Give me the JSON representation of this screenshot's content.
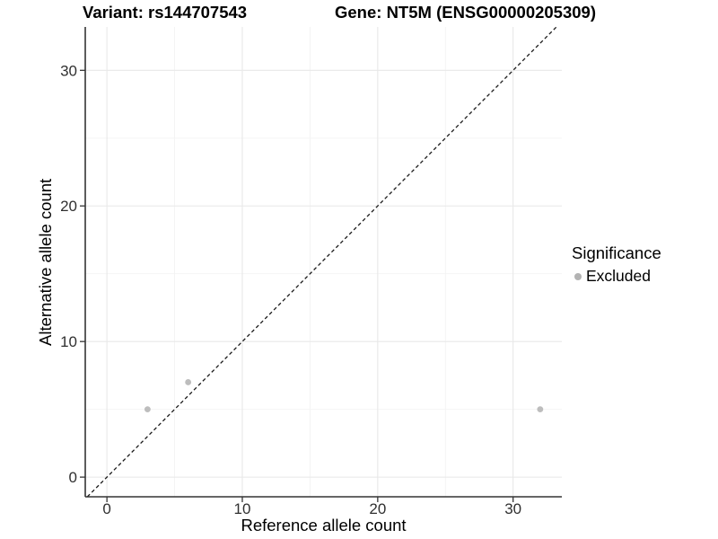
{
  "titles": {
    "variant": "Variant: rs144707543",
    "gene": "Gene: NT5M (ENSG00000205309)"
  },
  "axes": {
    "x_label": "Reference allele count",
    "y_label": "Alternative allele count"
  },
  "legend": {
    "title": "Significance",
    "items": [
      {
        "label": "Excluded",
        "color": "#b3b3b3",
        "marker": "circle-icon"
      }
    ]
  },
  "colors": {
    "background": "#ffffff",
    "point": "#bdbdbd",
    "grid_major": "#e8e8e8",
    "grid_minor": "#f3f3f3",
    "axis_line": "#343434",
    "tick_mark": "#343434",
    "tick_text": "#303030",
    "abline": "#1a1a1a"
  },
  "chart_data": {
    "type": "scatter",
    "title": "Variant: rs144707543 | Gene: NT5M (ENSG00000205309)",
    "xlabel": "Reference allele count",
    "ylabel": "Alternative allele count",
    "xlim": [
      -1.6,
      33.6
    ],
    "ylim": [
      -1.45,
      33.2
    ],
    "x_ticks": [
      0,
      10,
      20,
      30
    ],
    "y_ticks": [
      0,
      10,
      20,
      30
    ],
    "x_minor_ticks": [
      5,
      15,
      25
    ],
    "y_minor_ticks": [
      5,
      15,
      25
    ],
    "grid": true,
    "legend_position": "right",
    "series": [
      {
        "name": "Excluded",
        "color": "#bdbdbd",
        "points": [
          {
            "x": 3,
            "y": 5
          },
          {
            "x": 6,
            "y": 7
          },
          {
            "x": 32,
            "y": 5
          }
        ]
      }
    ],
    "reference_line": {
      "type": "abline",
      "slope": 1,
      "intercept": 0,
      "linetype": "dashed",
      "color": "#1a1a1a"
    }
  }
}
